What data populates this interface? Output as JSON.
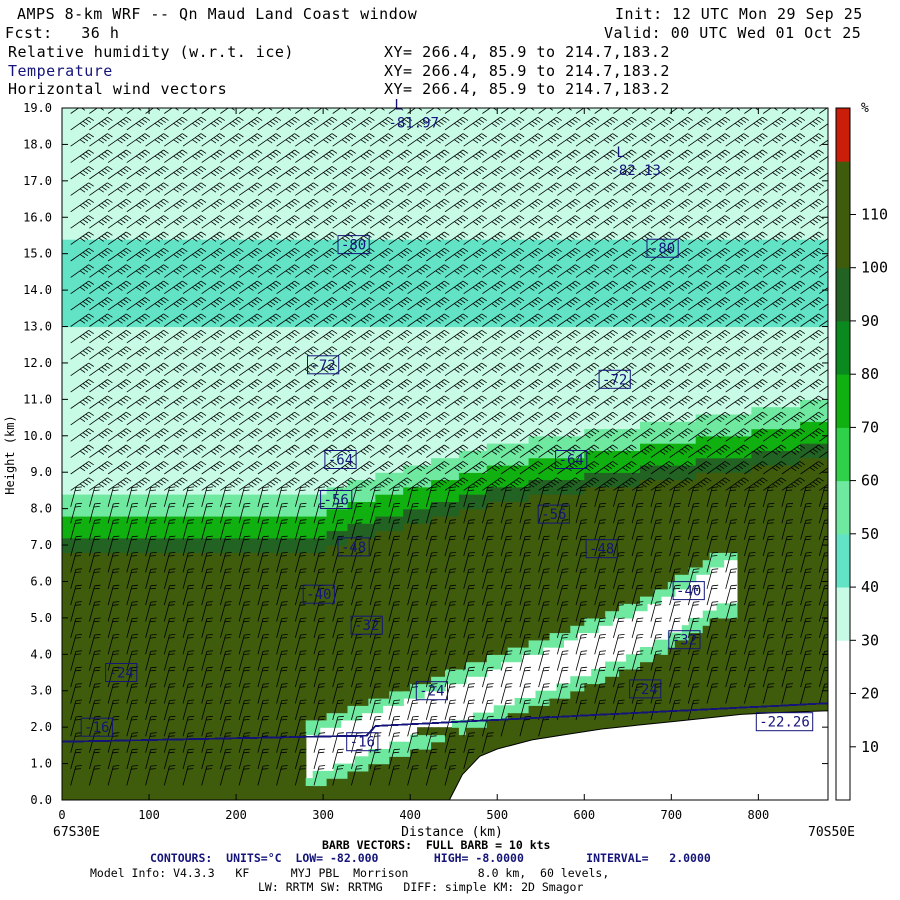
{
  "header": {
    "title": "AMPS 8-km WRF -- Qn Maud Land Coast window",
    "fcst": "Fcst:   36 h",
    "init": "Init: 12 UTC Mon 29 Sep 25",
    "valid": "Valid: 00 UTC Wed 01 Oct 25",
    "fields": [
      {
        "name": "Relative humidity (w.r.t. ice)",
        "xy": "XY= 266.4, 85.9 to 214.7,183.2"
      },
      {
        "name": "Temperature",
        "xy": "XY= 266.4, 85.9 to 214.7,183.2"
      },
      {
        "name": "Horizontal wind vectors",
        "xy": "XY= 266.4, 85.9 to 214.7,183.2"
      }
    ]
  },
  "chart_data": {
    "type": "heatmap",
    "title": "Cross-section: relative humidity (w.r.t. ice), temperature contours, horizontal wind barbs",
    "xlabel": "Distance (km)",
    "ylabel": "Height (km)",
    "xlim": [
      0,
      880
    ],
    "ylim": [
      0,
      19
    ],
    "x_ticks": [
      0,
      100,
      200,
      300,
      400,
      500,
      600,
      700,
      800
    ],
    "y_ticks": [
      "0.0",
      "1.0",
      "2.0",
      "3.0",
      "4.0",
      "5.0",
      "6.0",
      "7.0",
      "8.0",
      "9.0",
      "10.0",
      "11.0",
      "12.0",
      "13.0",
      "14.0",
      "15.0",
      "16.0",
      "17.0",
      "18.0",
      "19.0"
    ],
    "x_end_labels": {
      "left": "67S30E",
      "right": "70S50E"
    },
    "colorbar": {
      "unit": "%",
      "tick_labels": [
        "10",
        "20",
        "30",
        "40",
        "50",
        "60",
        "70",
        "80",
        "90",
        "100",
        "110"
      ],
      "levels": [
        0,
        10,
        20,
        30,
        40,
        50,
        60,
        70,
        80,
        90,
        100,
        110,
        120
      ],
      "colors": [
        "#ffffff",
        "#ffffff",
        "#ffffff",
        "#c8fbe6",
        "#62e3c5",
        "#6fe8a0",
        "#2fd04a",
        "#10b010",
        "#0a8a1e",
        "#226222",
        "#3f5c0c",
        "#3f5c0c",
        "#c81e0a"
      ]
    },
    "terrain_profile": {
      "x_km": [
        445,
        460,
        480,
        500,
        540,
        580,
        620,
        660,
        700,
        740,
        780,
        820,
        880
      ],
      "z_km": [
        0,
        0.7,
        1.2,
        1.4,
        1.65,
        1.8,
        1.95,
        2.05,
        2.15,
        2.25,
        2.35,
        2.4,
        2.45
      ]
    },
    "isotherms": [
      {
        "label": "-16",
        "x": 40,
        "z": 2.0
      },
      {
        "label": "-16",
        "x": 345,
        "z": 1.6
      },
      {
        "label": "-22.26",
        "x": 830,
        "z": 2.15
      },
      {
        "label": "-24",
        "x": 68,
        "z": 3.5
      },
      {
        "label": "-24",
        "x": 425,
        "z": 3.0
      },
      {
        "label": "-24",
        "x": 670,
        "z": 3.05
      },
      {
        "label": "-32",
        "x": 350,
        "z": 4.8
      },
      {
        "label": "-32",
        "x": 715,
        "z": 4.4
      },
      {
        "label": "-40",
        "x": 295,
        "z": 5.65
      },
      {
        "label": "-40",
        "x": 720,
        "z": 5.75
      },
      {
        "label": "-48",
        "x": 335,
        "z": 6.95
      },
      {
        "label": "-48",
        "x": 620,
        "z": 6.9
      },
      {
        "label": "-56",
        "x": 315,
        "z": 8.25
      },
      {
        "label": "-56",
        "x": 565,
        "z": 7.85
      },
      {
        "label": "-64",
        "x": 320,
        "z": 9.35
      },
      {
        "label": "-64",
        "x": 585,
        "z": 9.35
      },
      {
        "label": "-72",
        "x": 300,
        "z": 11.95
      },
      {
        "label": "-72",
        "x": 635,
        "z": 11.55
      },
      {
        "label": "-80",
        "x": 335,
        "z": 15.25
      },
      {
        "label": "-80",
        "x": 690,
        "z": 15.15
      }
    ],
    "extrema": [
      {
        "label": "L",
        "value": "-81.97",
        "x": 375,
        "z": 18.85
      },
      {
        "label": "L",
        "value": "-82.13",
        "x": 630,
        "z": 17.55
      }
    ],
    "wind_barbs_note": "Horizontal wind barbs at every grid column; full barb = 10 kts"
  },
  "footer": {
    "x_left": "67S30E",
    "x_right": "70S50E",
    "xlabel": "Distance (km)",
    "barb": "BARB VECTORS:  FULL BARB = 10 kts",
    "contours": "CONTOURS:  UNITS=°C  LOW= -82.000        HIGH= -8.0000         INTERVAL=   2.0000",
    "model1": "Model Info: V4.3.3   KF      MYJ PBL  Morrison          8.0 km,  60 levels,",
    "model2": "LW: RRTM SW: RRTMG   DIFF: simple KM: 2D Smagor"
  },
  "colors": {
    "contour": "#14147a",
    "terrain": "#ffffff"
  }
}
